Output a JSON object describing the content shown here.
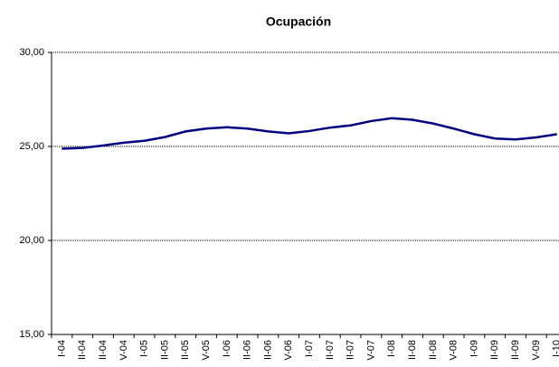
{
  "chart_data": {
    "type": "line",
    "title": "Ocupación",
    "categories": [
      "I-04",
      "II-04",
      "II-04",
      "V-04",
      "I-05",
      "II-05",
      "II-05",
      "V-05",
      "I-06",
      "II-06",
      "II-06",
      "V-06",
      "I-07",
      "II-07",
      "II-07",
      "V-07",
      "I-08",
      "II-08",
      "II-08",
      "V-08",
      "I-09",
      "II-09",
      "II-09",
      "V-09",
      "I-10"
    ],
    "series": [
      {
        "color": "#000080",
        "values": [
          24.88,
          24.92,
          25.05,
          25.2,
          25.3,
          25.5,
          25.8,
          25.95,
          26.02,
          25.95,
          25.8,
          25.7,
          25.82,
          26.0,
          26.12,
          26.35,
          26.5,
          26.42,
          26.22,
          25.95,
          25.65,
          25.42,
          25.37,
          25.48,
          25.65
        ]
      }
    ],
    "ylim": [
      15,
      30
    ],
    "yticks": [
      {
        "value": 15,
        "label": "15,00"
      },
      {
        "value": 20,
        "label": "20,00"
      },
      {
        "value": 25,
        "label": "25,00"
      },
      {
        "value": 30,
        "label": "30,00"
      }
    ],
    "grid": true
  }
}
